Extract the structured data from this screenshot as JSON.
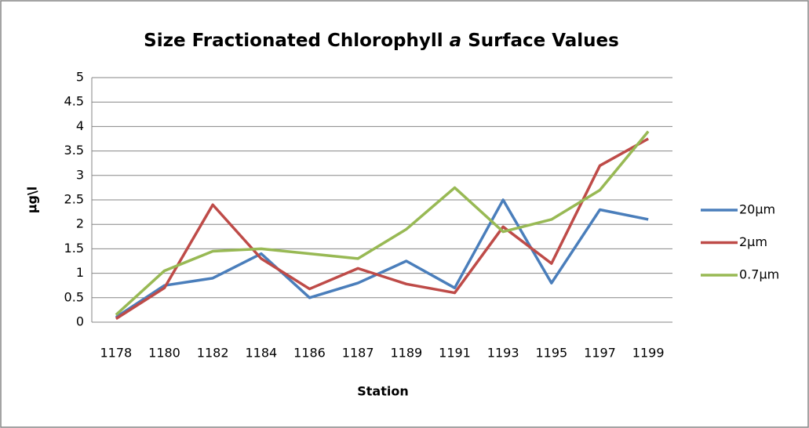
{
  "chart_data": {
    "type": "line",
    "title": [
      "Size Fractionated Chlorophyll",
      "a",
      "Surface Values"
    ],
    "x_label": "Station",
    "y_label": "µg\\l",
    "categories": [
      "1178",
      "1180",
      "1182",
      "1184",
      "1186",
      "1187",
      "1189",
      "1191",
      "1193",
      "1195",
      "1197",
      "1199"
    ],
    "series": [
      {
        "name": "20µm",
        "color": "#4a7ebb",
        "values": [
          0.1,
          0.75,
          0.9,
          1.4,
          0.5,
          0.8,
          1.25,
          0.7,
          2.5,
          0.8,
          2.3,
          2.1
        ]
      },
      {
        "name": "2µm",
        "color": "#be4b48",
        "values": [
          0.07,
          0.7,
          2.4,
          1.3,
          0.68,
          1.1,
          0.78,
          0.6,
          1.95,
          1.2,
          3.2,
          3.75
        ]
      },
      {
        "name": "0.7µm",
        "color": "#98b954",
        "values": [
          0.15,
          1.05,
          1.45,
          1.5,
          1.4,
          1.3,
          1.9,
          2.75,
          1.85,
          2.1,
          2.7,
          3.9
        ]
      }
    ],
    "ylim": [
      0,
      5
    ],
    "yticks": [
      0,
      0.5,
      1,
      1.5,
      2,
      2.5,
      3,
      3.5,
      4,
      4.5,
      5
    ],
    "grid": true,
    "legend": "right"
  }
}
